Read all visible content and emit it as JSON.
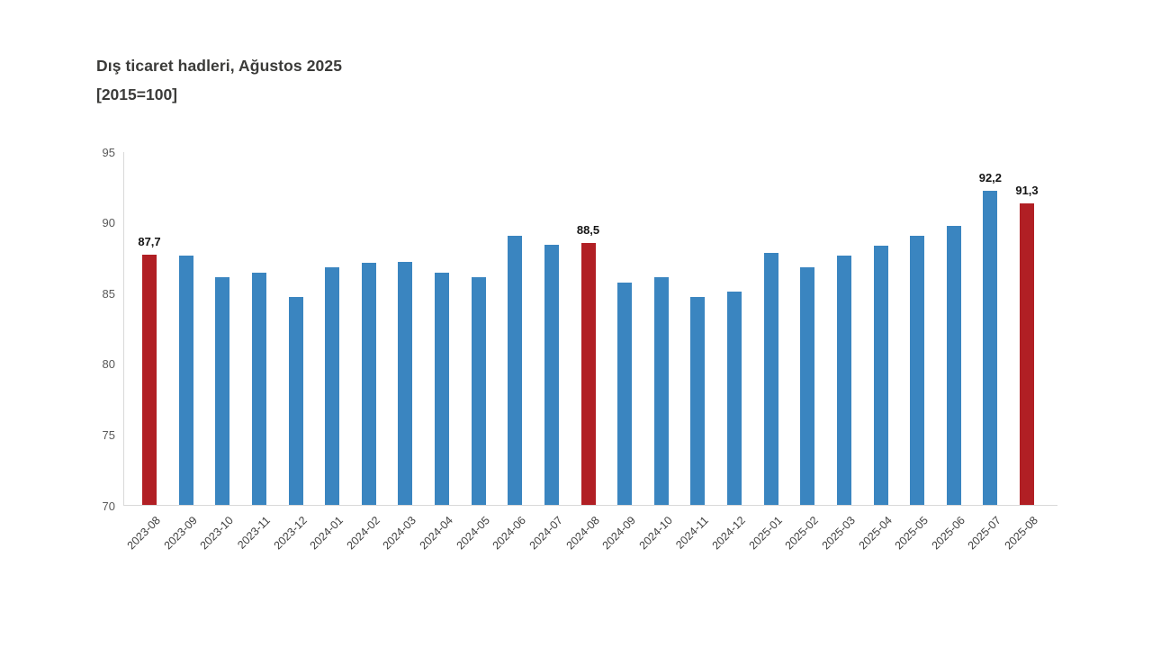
{
  "header": {
    "title": "Dış ticaret hadleri, Ağustos 2025",
    "subtitle": "[2015=100]"
  },
  "colors": {
    "bar_default": "#3a85c0",
    "bar_highlight": "#b11f24",
    "axis_line": "#d9d9d9",
    "ytick_label": "#595959",
    "xtick_label": "#404040",
    "value_label": "#141414",
    "background": "#ffffff"
  },
  "chart_data": {
    "type": "bar",
    "title": "Dış ticaret hadleri, Ağustos 2025",
    "subtitle": "[2015=100]",
    "categories": [
      "2023-08",
      "2023-09",
      "2023-10",
      "2023-11",
      "2023-12",
      "2024-01",
      "2024-02",
      "2024-03",
      "2024-04",
      "2024-05",
      "2024-06",
      "2024-07",
      "2024-08",
      "2024-09",
      "2024-10",
      "2024-11",
      "2024-12",
      "2025-01",
      "2025-02",
      "2025-03",
      "2025-04",
      "2025-05",
      "2025-06",
      "2025-07",
      "2025-08"
    ],
    "values": [
      87.7,
      87.6,
      86.1,
      86.4,
      84.7,
      86.8,
      87.1,
      87.2,
      86.4,
      86.1,
      89.0,
      88.4,
      88.5,
      85.7,
      86.1,
      84.7,
      85.1,
      87.8,
      86.8,
      87.6,
      88.3,
      89.0,
      89.7,
      92.2,
      91.3
    ],
    "highlighted_categories": [
      "2023-08",
      "2024-08",
      "2025-08"
    ],
    "data_labels": {
      "2023-08": "87,7",
      "2024-08": "88,5",
      "2025-07": "92,2",
      "2025-08": "91,3"
    },
    "xlabel": "",
    "ylabel": "",
    "ylim": [
      70,
      95
    ],
    "yticks": [
      70,
      75,
      80,
      85,
      90,
      95
    ],
    "grid": false,
    "legend": false,
    "xtick_rotation": -45
  }
}
